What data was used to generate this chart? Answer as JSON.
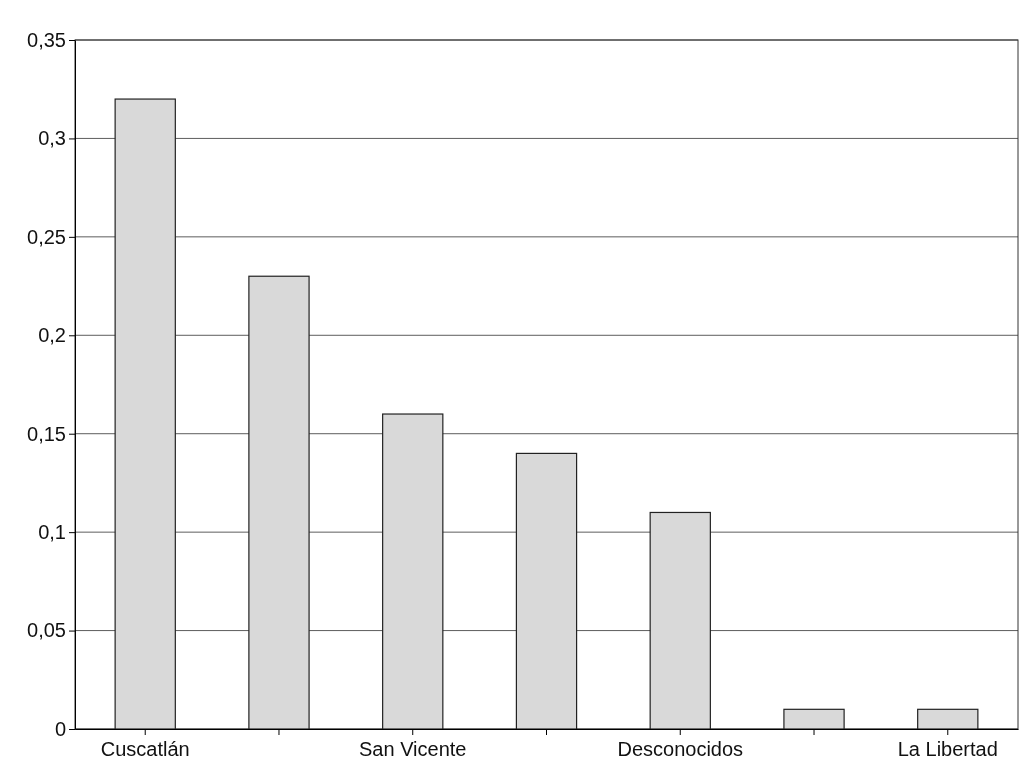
{
  "chart_data": {
    "type": "bar",
    "categories": [
      "Cuscatlán",
      null,
      "San Vicente",
      null,
      "Desconocidos",
      null,
      "La Libertad"
    ],
    "values": [
      0.32,
      0.23,
      0.16,
      0.14,
      0.11,
      0.01,
      0.01
    ],
    "color": "#d9d9d9",
    "ylim": [
      0,
      0.35
    ],
    "yticks": [
      0,
      {
        "value": 0.05,
        "label": "0,05"
      },
      {
        "value": 0.1,
        "label": "0,1"
      },
      {
        "value": 0.15,
        "label": "0,15"
      },
      {
        "value": 0.2,
        "label": "0,2"
      },
      {
        "value": 0.25,
        "label": "0,25"
      },
      {
        "value": 0.3,
        "label": "0,3"
      },
      {
        "value": 0.35,
        "label": "0,35"
      }
    ],
    "grid": "y"
  }
}
